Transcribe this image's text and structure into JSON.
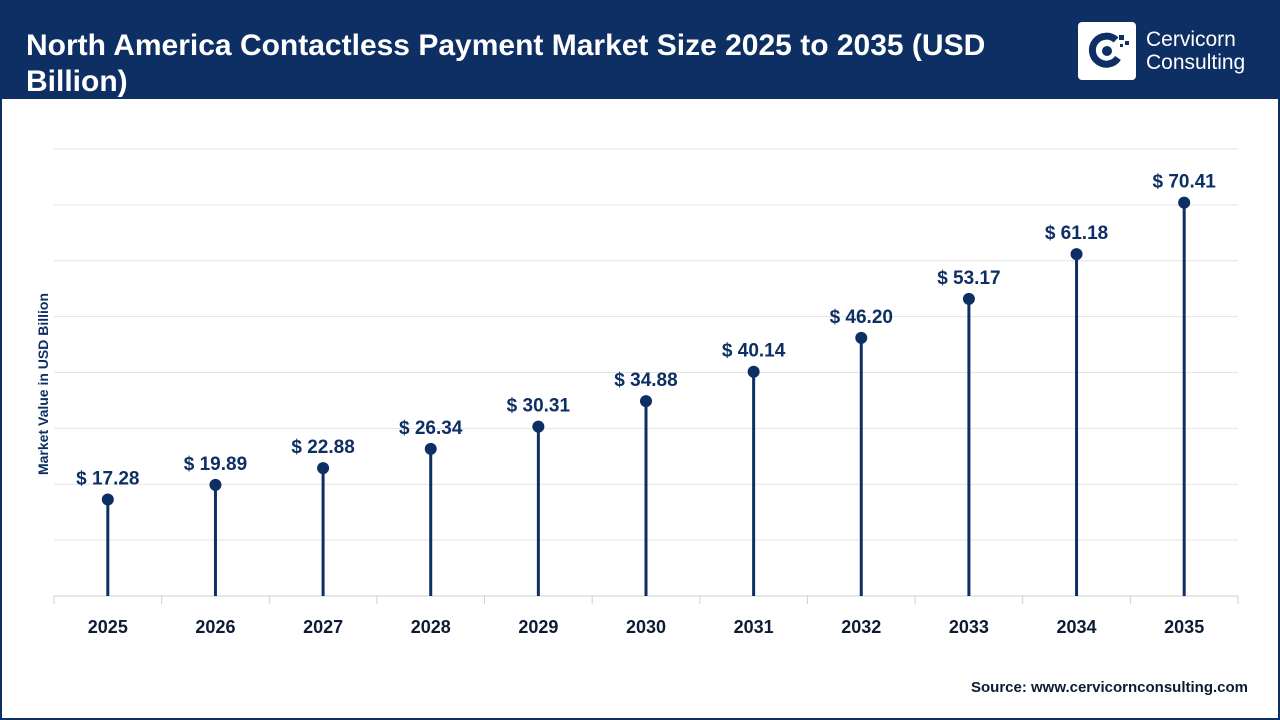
{
  "header": {
    "title": "North America Contactless Payment Market Size 2025 to 2035 (USD Billion)",
    "logo_text": "Cervicorn Consulting"
  },
  "source": "Source: www.cervicornconsulting.com",
  "colors": {
    "primary": "#0d2f63",
    "grid": "#e3e3e3",
    "label": "#0d1b33"
  },
  "chart_data": {
    "type": "lollipop",
    "title": "North America Contactless Payment Market Size 2025 to 2035 (USD Billion)",
    "xlabel": "",
    "ylabel": "Market Value in USD Billion",
    "categories": [
      "2025",
      "2026",
      "2027",
      "2028",
      "2029",
      "2030",
      "2031",
      "2032",
      "2033",
      "2034",
      "2035"
    ],
    "values": [
      17.28,
      19.89,
      22.88,
      26.34,
      30.31,
      34.88,
      40.14,
      46.2,
      53.17,
      61.18,
      70.41
    ],
    "data_labels": [
      "$ 17.28",
      "$ 19.89",
      "$ 22.88",
      "$ 26.34",
      "$ 30.31",
      "$ 34.88",
      "$ 40.14",
      "$ 46.20",
      "$ 53.17",
      "$ 61.18",
      "$ 70.41"
    ],
    "ylim": [
      0,
      80
    ],
    "grid": true,
    "legend": "none"
  }
}
